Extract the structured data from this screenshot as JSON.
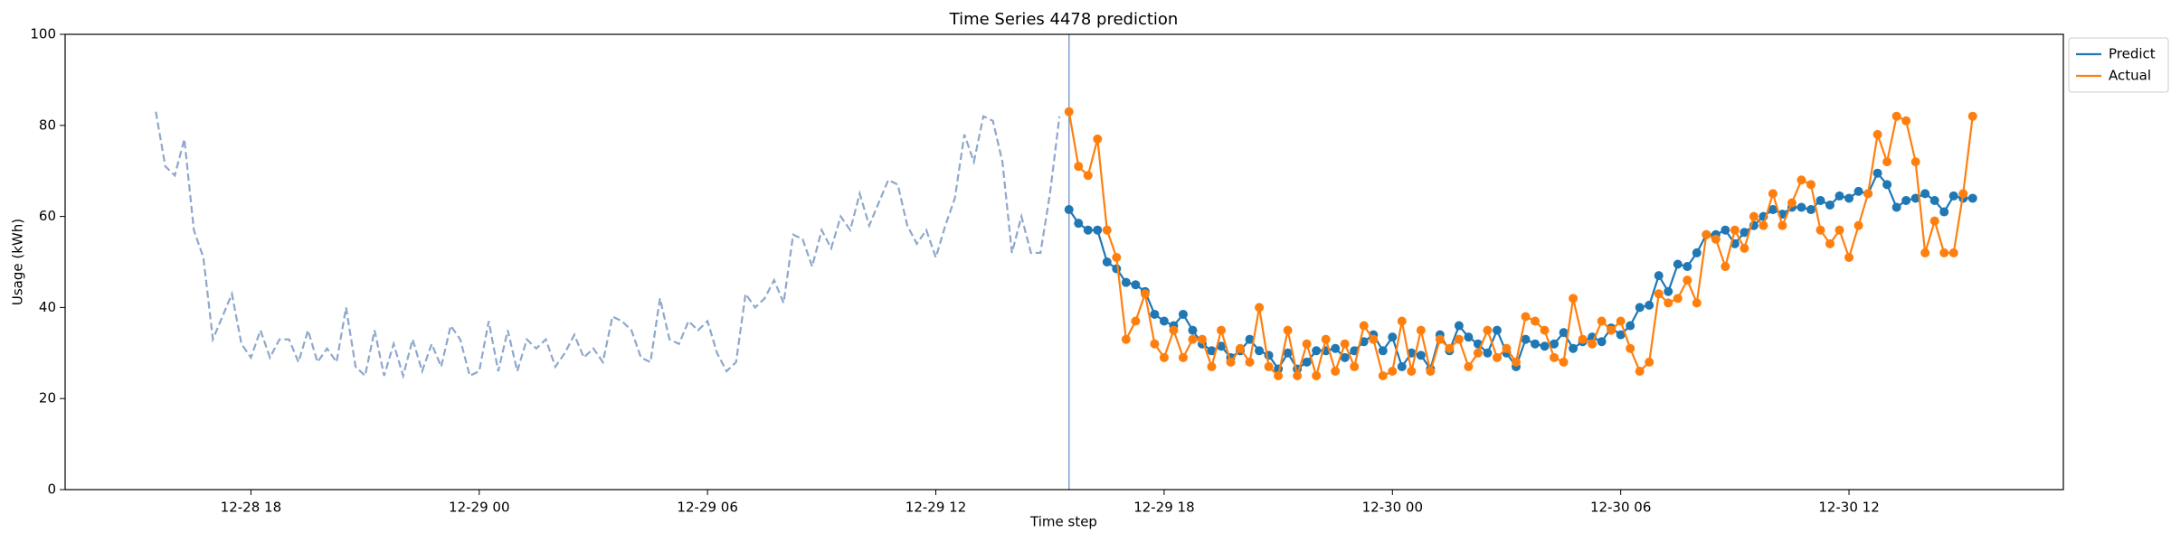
{
  "chart_data": {
    "type": "line",
    "title": "Time Series 4478 prediction",
    "x_label": "Time step",
    "y_label": "Usage (kWh)",
    "x": [
      "12-28 15:30",
      "12-28 15:45",
      "12-28 16:00",
      "12-28 16:15",
      "12-28 16:30",
      "12-28 16:45",
      "12-28 17:00",
      "12-28 17:15",
      "12-28 17:30",
      "12-28 17:45",
      "12-28 18:00",
      "12-28 18:15",
      "12-28 18:30",
      "12-28 18:45",
      "12-28 19:00",
      "12-28 19:15",
      "12-28 19:30",
      "12-28 19:45",
      "12-28 20:00",
      "12-28 20:15",
      "12-28 20:30",
      "12-28 20:45",
      "12-28 21:00",
      "12-28 21:15",
      "12-28 21:30",
      "12-28 21:45",
      "12-28 22:00",
      "12-28 22:15",
      "12-28 22:30",
      "12-28 22:45",
      "12-28 23:00",
      "12-28 23:15",
      "12-28 23:30",
      "12-28 23:45",
      "12-29 00:00",
      "12-29 00:15",
      "12-29 00:30",
      "12-29 00:45",
      "12-29 01:00",
      "12-29 01:15",
      "12-29 01:30",
      "12-29 01:45",
      "12-29 02:00",
      "12-29 02:15",
      "12-29 02:30",
      "12-29 02:45",
      "12-29 03:00",
      "12-29 03:15",
      "12-29 03:30",
      "12-29 03:45",
      "12-29 04:00",
      "12-29 04:15",
      "12-29 04:30",
      "12-29 04:45",
      "12-29 05:00",
      "12-29 05:15",
      "12-29 05:30",
      "12-29 05:45",
      "12-29 06:00",
      "12-29 06:15",
      "12-29 06:30",
      "12-29 06:45",
      "12-29 07:00",
      "12-29 07:15",
      "12-29 07:30",
      "12-29 07:45",
      "12-29 08:00",
      "12-29 08:15",
      "12-29 08:30",
      "12-29 08:45",
      "12-29 09:00",
      "12-29 09:15",
      "12-29 09:30",
      "12-29 09:45",
      "12-29 10:00",
      "12-29 10:15",
      "12-29 10:30",
      "12-29 10:45",
      "12-29 11:00",
      "12-29 11:15",
      "12-29 11:30",
      "12-29 11:45",
      "12-29 12:00",
      "12-29 12:15",
      "12-29 12:30",
      "12-29 12:45",
      "12-29 13:00",
      "12-29 13:15",
      "12-29 13:30",
      "12-29 13:45",
      "12-29 14:00",
      "12-29 14:15",
      "12-29 14:30",
      "12-29 14:45",
      "12-29 15:00",
      "12-29 15:15",
      "12-29 15:30",
      "12-29 15:45",
      "12-29 16:00",
      "12-29 16:15",
      "12-29 16:30",
      "12-29 16:45",
      "12-29 17:00",
      "12-29 17:15",
      "12-29 17:30",
      "12-29 17:45",
      "12-29 18:00",
      "12-29 18:15",
      "12-29 18:30",
      "12-29 18:45",
      "12-29 19:00",
      "12-29 19:15",
      "12-29 19:30",
      "12-29 19:45",
      "12-29 20:00",
      "12-29 20:15",
      "12-29 20:30",
      "12-29 20:45",
      "12-29 21:00",
      "12-29 21:15",
      "12-29 21:30",
      "12-29 21:45",
      "12-29 22:00",
      "12-29 22:15",
      "12-29 22:30",
      "12-29 22:45",
      "12-29 23:00",
      "12-29 23:15",
      "12-29 23:30",
      "12-29 23:45",
      "12-30 00:00",
      "12-30 00:15",
      "12-30 00:30",
      "12-30 00:45",
      "12-30 01:00",
      "12-30 01:15",
      "12-30 01:30",
      "12-30 01:45",
      "12-30 02:00",
      "12-30 02:15",
      "12-30 02:30",
      "12-30 02:45",
      "12-30 03:00",
      "12-30 03:15",
      "12-30 03:30",
      "12-30 03:45",
      "12-30 04:00",
      "12-30 04:15",
      "12-30 04:30",
      "12-30 04:45",
      "12-30 05:00",
      "12-30 05:15",
      "12-30 05:30",
      "12-30 05:45",
      "12-30 06:00",
      "12-30 06:15",
      "12-30 06:30",
      "12-30 06:45",
      "12-30 07:00",
      "12-30 07:15",
      "12-30 07:30",
      "12-30 07:45",
      "12-30 08:00",
      "12-30 08:15",
      "12-30 08:30",
      "12-30 08:45",
      "12-30 09:00",
      "12-30 09:15",
      "12-30 09:30",
      "12-30 09:45",
      "12-30 10:00",
      "12-30 10:15",
      "12-30 10:30",
      "12-30 10:45",
      "12-30 11:00",
      "12-30 11:15",
      "12-30 11:30",
      "12-30 11:45",
      "12-30 12:00",
      "12-30 12:15",
      "12-30 12:30",
      "12-30 12:45",
      "12-30 13:00",
      "12-30 13:15",
      "12-30 13:30",
      "12-30 13:45",
      "12-30 14:00",
      "12-30 14:15",
      "12-30 14:30",
      "12-30 14:45",
      "12-30 15:00",
      "12-30 15:15"
    ],
    "series": [
      {
        "color": "#8ea7cc",
        "style": "dashed",
        "marker": false,
        "values": [
          83,
          71,
          69,
          77,
          57,
          51,
          33,
          38,
          43,
          32,
          29,
          35,
          29,
          33,
          33,
          28,
          35,
          28,
          31,
          28,
          40,
          27,
          25,
          35,
          25,
          32,
          25,
          33,
          26,
          32,
          27,
          36,
          33,
          25,
          26,
          37,
          26,
          35,
          26,
          33,
          31,
          33,
          27,
          30,
          34,
          29,
          31,
          28,
          38,
          37,
          35,
          29,
          28,
          42,
          33,
          32,
          37,
          35,
          37,
          30,
          26,
          28,
          43,
          40,
          42,
          46,
          41,
          56,
          55,
          49,
          57,
          53,
          60,
          57,
          65,
          58,
          63,
          68,
          67,
          58,
          54,
          57,
          51,
          58,
          64,
          78,
          72,
          82,
          81,
          72,
          52,
          60,
          52,
          52,
          65,
          82,
          null,
          null,
          null,
          null,
          null,
          null,
          null,
          null,
          null,
          null,
          null,
          null,
          null,
          null,
          null,
          null,
          null,
          null,
          null,
          null,
          null,
          null,
          null,
          null,
          null,
          null,
          null,
          null,
          null,
          null,
          null,
          null,
          null,
          null,
          null,
          null,
          null,
          null,
          null,
          null,
          null,
          null,
          null,
          null,
          null,
          null,
          null,
          null,
          null,
          null,
          null,
          null,
          null,
          null,
          null,
          null,
          null,
          null,
          null,
          null,
          null,
          null,
          null,
          null,
          null,
          null,
          null,
          null,
          null,
          null,
          null,
          null,
          null,
          null,
          null,
          null,
          null,
          null,
          null,
          null,
          null,
          null,
          null,
          null,
          null,
          null,
          null,
          null,
          null,
          null,
          null,
          null,
          null,
          null,
          null,
          null
        ]
      },
      {
        "name": "Predict",
        "color": "#1f77b4",
        "style": "solid",
        "marker": true,
        "values": [
          null,
          null,
          null,
          null,
          null,
          null,
          null,
          null,
          null,
          null,
          null,
          null,
          null,
          null,
          null,
          null,
          null,
          null,
          null,
          null,
          null,
          null,
          null,
          null,
          null,
          null,
          null,
          null,
          null,
          null,
          null,
          null,
          null,
          null,
          null,
          null,
          null,
          null,
          null,
          null,
          null,
          null,
          null,
          null,
          null,
          null,
          null,
          null,
          null,
          null,
          null,
          null,
          null,
          null,
          null,
          null,
          null,
          null,
          null,
          null,
          null,
          null,
          null,
          null,
          null,
          null,
          null,
          null,
          null,
          null,
          null,
          null,
          null,
          null,
          null,
          null,
          null,
          null,
          null,
          null,
          null,
          null,
          null,
          null,
          null,
          null,
          null,
          null,
          null,
          null,
          null,
          null,
          null,
          null,
          null,
          null,
          61.5,
          58.5,
          57,
          57,
          50,
          48.5,
          45.5,
          45,
          43.5,
          38.5,
          37,
          36,
          38.5,
          35,
          32,
          30.5,
          31.5,
          29,
          30.5,
          33,
          30.5,
          29.5,
          26.5,
          30,
          26.5,
          28,
          30.5,
          30.5,
          31,
          29,
          30.5,
          32.5,
          34,
          30.5,
          33.5,
          27,
          30,
          29.5,
          26.5,
          34,
          30.5,
          36,
          33.5,
          32,
          30,
          35,
          30,
          27,
          33,
          32,
          31.5,
          32,
          34.5,
          31,
          32.5,
          33.5,
          32.5,
          35.5,
          34,
          36,
          40,
          40.5,
          47,
          43.5,
          49.5,
          49,
          52,
          56,
          56,
          57,
          54,
          56.5,
          58,
          60,
          61.5,
          60.5,
          62,
          62,
          61.5,
          63.5,
          62.5,
          64.5,
          64,
          65.5,
          65,
          69.5,
          67,
          62,
          63.5,
          64,
          65,
          63.5,
          61,
          64.5,
          64,
          64
        ]
      },
      {
        "name": "Actual",
        "color": "#ff7f0e",
        "style": "solid",
        "marker": true,
        "values": [
          null,
          null,
          null,
          null,
          null,
          null,
          null,
          null,
          null,
          null,
          null,
          null,
          null,
          null,
          null,
          null,
          null,
          null,
          null,
          null,
          null,
          null,
          null,
          null,
          null,
          null,
          null,
          null,
          null,
          null,
          null,
          null,
          null,
          null,
          null,
          null,
          null,
          null,
          null,
          null,
          null,
          null,
          null,
          null,
          null,
          null,
          null,
          null,
          null,
          null,
          null,
          null,
          null,
          null,
          null,
          null,
          null,
          null,
          null,
          null,
          null,
          null,
          null,
          null,
          null,
          null,
          null,
          null,
          null,
          null,
          null,
          null,
          null,
          null,
          null,
          null,
          null,
          null,
          null,
          null,
          null,
          null,
          null,
          null,
          null,
          null,
          null,
          null,
          null,
          null,
          null,
          null,
          null,
          null,
          null,
          null,
          83,
          71,
          69,
          77,
          57,
          51,
          33,
          37,
          43,
          32,
          29,
          35,
          29,
          33,
          33,
          27,
          35,
          28,
          31,
          28,
          40,
          27,
          25,
          35,
          25,
          32,
          25,
          33,
          26,
          32,
          27,
          36,
          33,
          25,
          26,
          37,
          26,
          35,
          26,
          33,
          31,
          33,
          27,
          30,
          35,
          29,
          31,
          28,
          38,
          37,
          35,
          29,
          28,
          42,
          33,
          32,
          37,
          35,
          37,
          31,
          26,
          28,
          43,
          41,
          42,
          46,
          41,
          56,
          55,
          49,
          57,
          53,
          60,
          58,
          65,
          58,
          63,
          68,
          67,
          57,
          54,
          57,
          51,
          58,
          65,
          78,
          72,
          82,
          81,
          72,
          52,
          59,
          52,
          52,
          65,
          82
        ]
      }
    ],
    "vline": "12-29 15:30",
    "vline_color": "#7f9fd0",
    "xlim": [
      "12-28 13:07",
      "12-30 17:38"
    ],
    "xticks": [
      {
        "value": "12-28 18:00",
        "label": "12-28 18"
      },
      {
        "value": "12-29 00:00",
        "label": "12-29 00"
      },
      {
        "value": "12-29 06:00",
        "label": "12-29 06"
      },
      {
        "value": "12-29 12:00",
        "label": "12-29 12"
      },
      {
        "value": "12-29 18:00",
        "label": "12-29 18"
      },
      {
        "value": "12-30 00:00",
        "label": "12-30 00"
      },
      {
        "value": "12-30 06:00",
        "label": "12-30 06"
      },
      {
        "value": "12-30 12:00",
        "label": "12-30 12"
      }
    ],
    "ylim": [
      0,
      100
    ],
    "yticks": [
      0,
      20,
      40,
      60,
      80,
      100
    ],
    "grid": false,
    "legend": "outside upper right"
  }
}
